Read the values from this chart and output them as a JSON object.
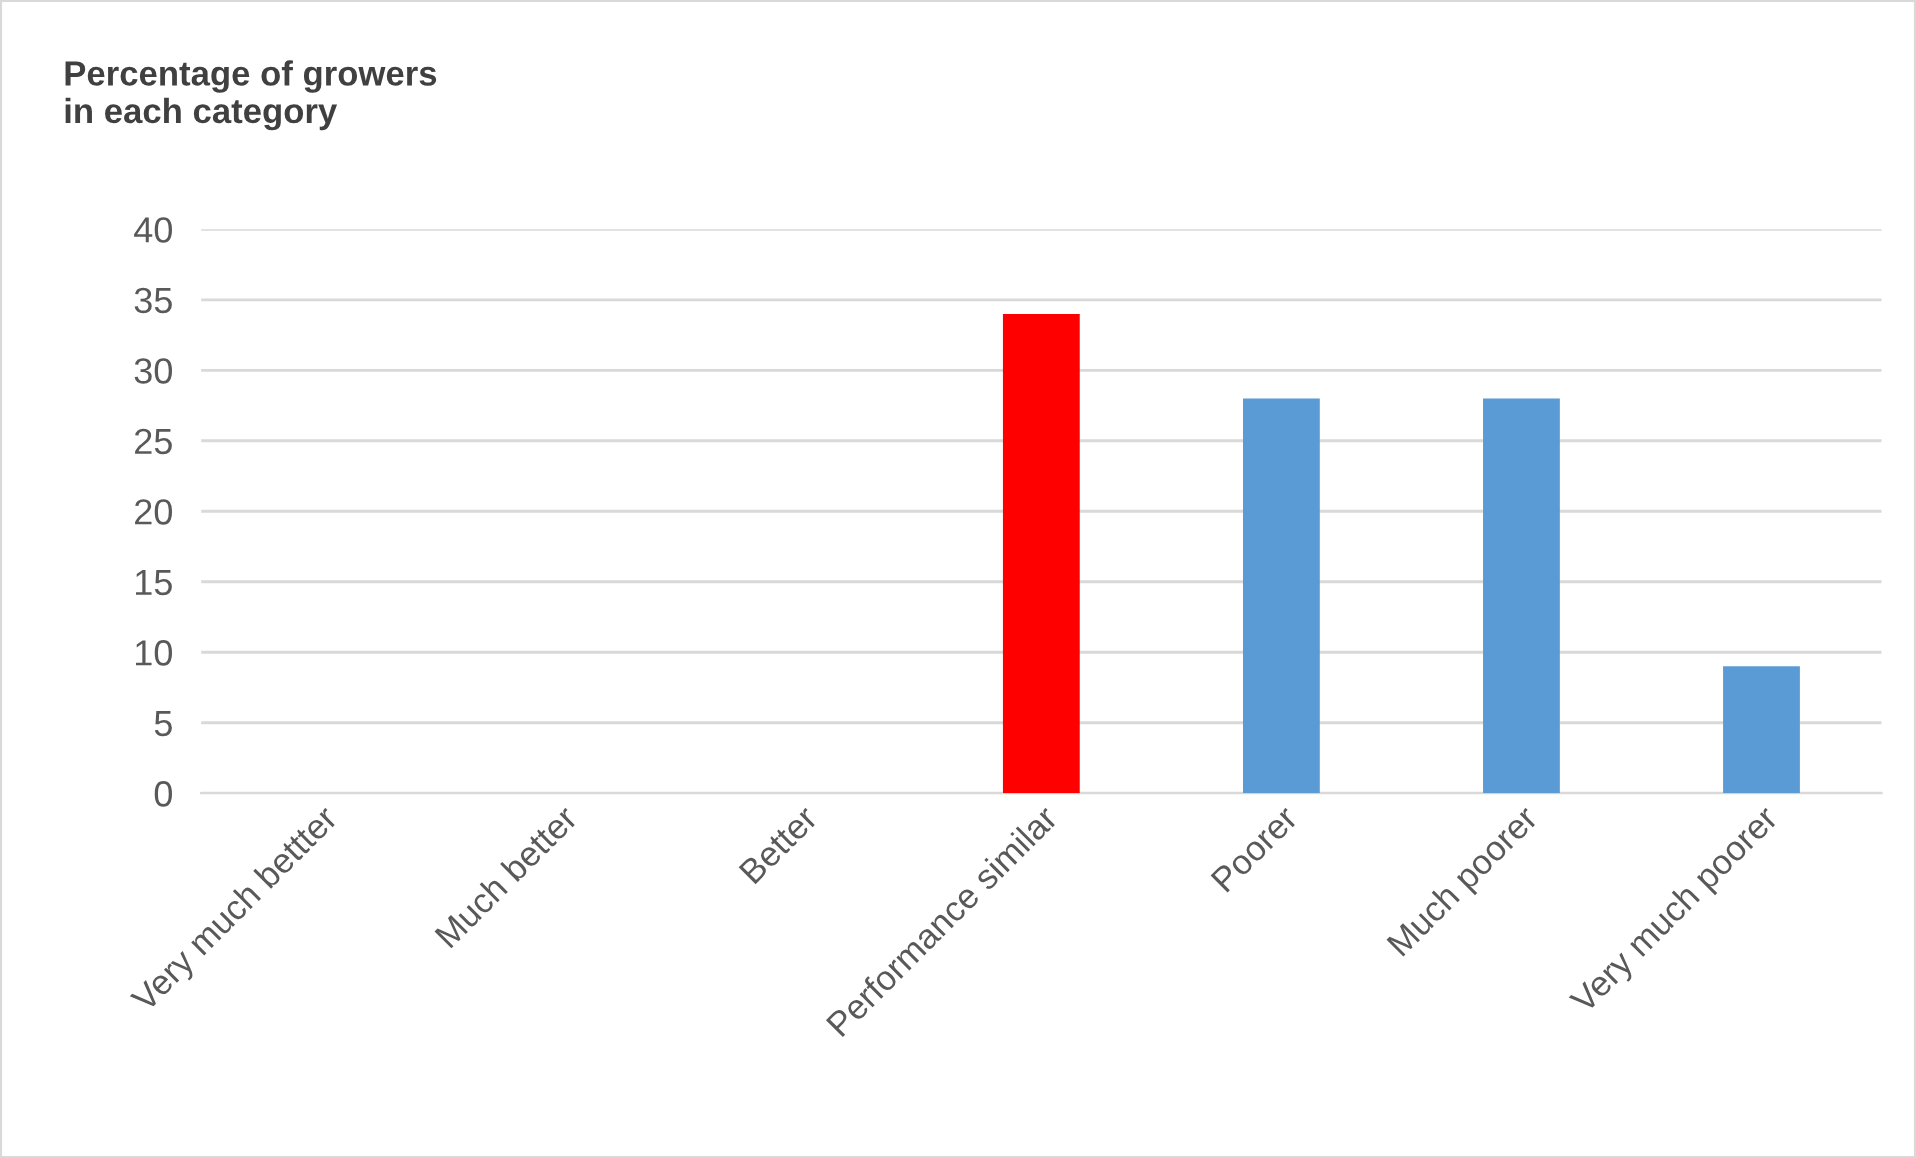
{
  "chart_data": {
    "type": "bar",
    "title": "Percentage of growers\nin each category",
    "categories": [
      "Very much bettter",
      "Much better",
      "Better",
      "Performance similar",
      "Poorer",
      "Much poorer",
      "Very much poorer"
    ],
    "values": [
      0,
      0,
      0,
      34,
      28,
      28,
      9
    ],
    "colors": [
      "#5b9bd5",
      "#5b9bd5",
      "#5b9bd5",
      "#ff0000",
      "#5b9bd5",
      "#5b9bd5",
      "#5b9bd5"
    ],
    "ylim": [
      0,
      40
    ],
    "yticks": [
      0,
      5,
      10,
      15,
      20,
      25,
      30,
      35,
      40
    ],
    "grid": "y",
    "legend": false
  }
}
